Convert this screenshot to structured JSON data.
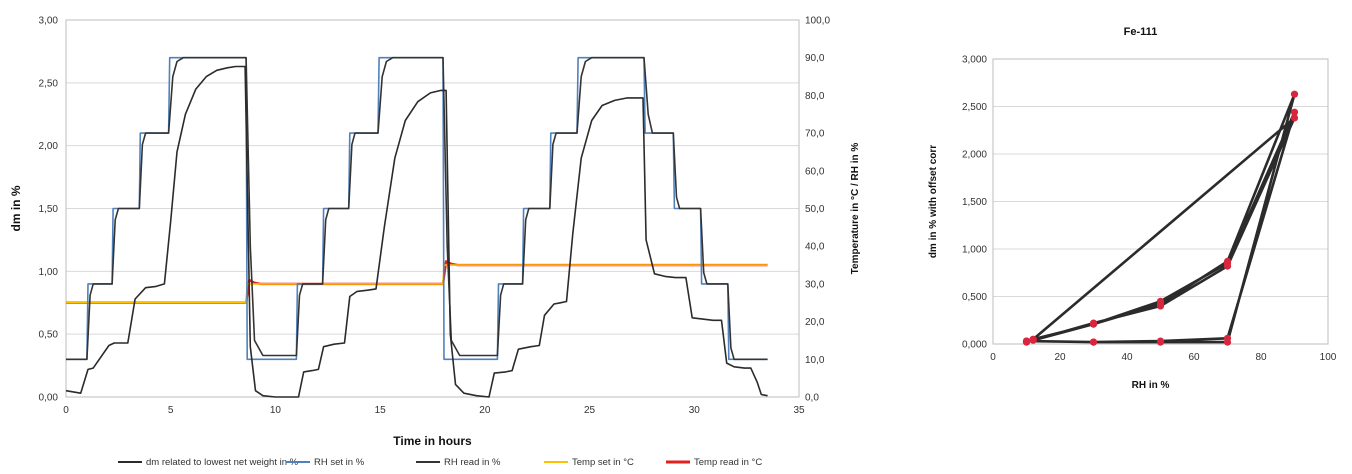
{
  "chart_data": [
    {
      "type": "line",
      "title": "",
      "xlabel": "Time in hours",
      "ylabel": "dm in %",
      "y2label": "Temperature in °C / RH in %",
      "xlim": [
        0,
        35
      ],
      "ylim": [
        0,
        3
      ],
      "y2lim": [
        0,
        100
      ],
      "xticks": [
        "0",
        "5",
        "10",
        "15",
        "20",
        "25",
        "30",
        "35"
      ],
      "yticks": [
        "0,00",
        "0,50",
        "1,00",
        "1,50",
        "2,00",
        "2,50",
        "3,00"
      ],
      "y2ticks": [
        "0,0",
        "10,0",
        "20,0",
        "30,0",
        "40,0",
        "50,0",
        "60,0",
        "70,0",
        "80,0",
        "90,0",
        "100,0"
      ],
      "grid": true,
      "legend_position": "bottom",
      "series": [
        {
          "name": "dm  related to lowest net weight in  %",
          "axis": "left",
          "color": "#2b2b2b",
          "x": [
            0,
            0.7,
            1.05,
            1.3,
            2.05,
            2.3,
            2.95,
            3.3,
            3.8,
            4.3,
            4.7,
            5.0,
            5.3,
            5.7,
            6.2,
            6.7,
            7.2,
            7.7,
            8.1,
            8.55,
            8.8,
            9.05,
            9.4,
            10.0,
            10.55,
            11.1,
            11.35,
            11.75,
            12.05,
            12.3,
            12.8,
            13.3,
            13.55,
            13.9,
            14.4,
            14.8,
            15.2,
            15.7,
            16.2,
            16.8,
            17.4,
            17.9,
            18.15,
            18.35,
            18.6,
            19.0,
            19.6,
            20.2,
            20.45,
            21.0,
            21.3,
            21.6,
            22.2,
            22.6,
            22.85,
            23.3,
            23.6,
            23.9,
            24.2,
            24.6,
            25.1,
            25.6,
            26.2,
            26.8,
            27.4,
            27.55,
            27.7,
            28.1,
            28.6,
            29.1,
            29.6,
            29.9,
            30.4,
            30.9,
            31.3,
            31.55,
            31.9,
            32.4,
            32.7,
            33.0,
            33.2,
            33.5
          ],
          "y": [
            0.05,
            0.03,
            0.22,
            0.23,
            0.41,
            0.43,
            0.43,
            0.78,
            0.87,
            0.88,
            0.9,
            1.4,
            1.95,
            2.25,
            2.45,
            2.55,
            2.6,
            2.62,
            2.63,
            2.63,
            0.4,
            0.05,
            0.01,
            0.0,
            0.0,
            0.0,
            0.2,
            0.21,
            0.22,
            0.4,
            0.42,
            0.43,
            0.8,
            0.84,
            0.85,
            0.86,
            1.35,
            1.9,
            2.2,
            2.35,
            2.42,
            2.44,
            2.44,
            0.5,
            0.1,
            0.03,
            0.01,
            0.0,
            0.19,
            0.2,
            0.21,
            0.38,
            0.4,
            0.41,
            0.65,
            0.74,
            0.75,
            0.76,
            1.3,
            1.9,
            2.2,
            2.32,
            2.36,
            2.38,
            2.38,
            2.38,
            1.25,
            0.98,
            0.96,
            0.95,
            0.95,
            0.63,
            0.62,
            0.61,
            0.61,
            0.27,
            0.24,
            0.23,
            0.23,
            0.12,
            0.02,
            0.01
          ]
        },
        {
          "name": "RH set in %",
          "axis": "right",
          "color": "#4f81bd",
          "x": [
            0,
            1.0,
            1.05,
            2.2,
            2.25,
            3.5,
            3.55,
            4.9,
            4.95,
            8.6,
            8.65,
            11.0,
            11.05,
            12.25,
            12.3,
            13.5,
            13.55,
            14.9,
            14.95,
            18.0,
            18.05,
            20.6,
            20.65,
            21.8,
            21.85,
            23.1,
            23.15,
            24.4,
            24.45,
            27.6,
            27.65,
            29.0,
            29.05,
            30.3,
            30.35,
            31.6,
            31.65,
            32.8,
            32.85,
            33.5
          ],
          "y": [
            10,
            10,
            30,
            30,
            50,
            50,
            70,
            70,
            90,
            90,
            10,
            10,
            30,
            30,
            50,
            50,
            70,
            70,
            90,
            90,
            10,
            10,
            30,
            30,
            50,
            50,
            70,
            70,
            90,
            90,
            70,
            70,
            50,
            50,
            30,
            30,
            10,
            10,
            10,
            10
          ]
        },
        {
          "name": "RH read in %",
          "axis": "right",
          "color": "#343434",
          "x": [
            0,
            1.0,
            1.15,
            1.3,
            2.2,
            2.35,
            2.5,
            3.5,
            3.65,
            3.8,
            4.9,
            5.1,
            5.3,
            5.6,
            8.6,
            8.8,
            9.0,
            9.4,
            11.0,
            11.15,
            11.3,
            12.25,
            12.4,
            12.55,
            13.5,
            13.65,
            13.8,
            14.9,
            15.1,
            15.3,
            15.6,
            18.0,
            18.2,
            18.4,
            18.8,
            20.6,
            20.75,
            20.9,
            21.8,
            21.95,
            22.1,
            23.1,
            23.25,
            23.4,
            24.4,
            24.6,
            24.8,
            25.1,
            27.6,
            27.8,
            28.0,
            29.0,
            29.15,
            29.3,
            30.3,
            30.45,
            30.6,
            31.6,
            31.75,
            31.9,
            32.8,
            32.95,
            33.1,
            33.5
          ],
          "y": [
            10,
            10,
            27,
            30,
            30,
            47,
            50,
            50,
            67,
            70,
            70,
            85,
            89,
            90,
            90,
            40,
            15,
            11,
            11,
            27,
            30,
            30,
            47,
            50,
            50,
            67,
            70,
            70,
            85,
            89,
            90,
            90,
            40,
            15,
            11,
            11,
            27,
            30,
            30,
            47,
            50,
            50,
            67,
            70,
            70,
            85,
            89,
            90,
            90,
            75,
            70,
            70,
            53,
            50,
            50,
            33,
            30,
            30,
            13,
            10,
            10,
            10,
            10,
            10
          ]
        },
        {
          "name": "Temp set in °C",
          "axis": "right",
          "color": "#ffc000",
          "x": [
            0,
            8.6,
            8.65,
            18.0,
            18.05,
            33.5
          ],
          "y": [
            25,
            25,
            30,
            30,
            35,
            35
          ]
        },
        {
          "name": "Temp read in °C",
          "axis": "right",
          "color": "#e0211c",
          "x": [
            0,
            8.6,
            8.75,
            9.0,
            9.3,
            18.0,
            18.15,
            18.4,
            18.7,
            33.5
          ],
          "y": [
            25,
            25,
            31,
            30.3,
            30,
            30,
            36,
            35.3,
            35,
            35
          ]
        }
      ]
    },
    {
      "type": "line",
      "title": "Fe-111",
      "xlabel": "RH in %",
      "ylabel": "dm in % with offset corr",
      "xlim": [
        0,
        100
      ],
      "ylim": [
        0,
        3
      ],
      "xticks": [
        "0",
        "20",
        "40",
        "60",
        "80",
        "100"
      ],
      "yticks": [
        "0,000",
        "0,500",
        "1,000",
        "1,500",
        "2,000",
        "2,500",
        "3,000"
      ],
      "grid": true,
      "series": [
        {
          "name": "",
          "color": "#2b2b2b",
          "marker_color": "#d7263d",
          "x": [
            10,
            30,
            50,
            70,
            90,
            70,
            50,
            30,
            10,
            12,
            30,
            50,
            70,
            90,
            70,
            50,
            30,
            10,
            12,
            30,
            50,
            70,
            90,
            12
          ],
          "y": [
            0.02,
            0.21,
            0.42,
            0.87,
            2.63,
            0.02,
            0.02,
            0.02,
            0.03,
            0.05,
            0.21,
            0.45,
            0.85,
            2.44,
            0.06,
            0.03,
            0.02,
            0.03,
            0.04,
            0.22,
            0.4,
            0.82,
            2.38,
            0.05
          ]
        }
      ]
    }
  ]
}
